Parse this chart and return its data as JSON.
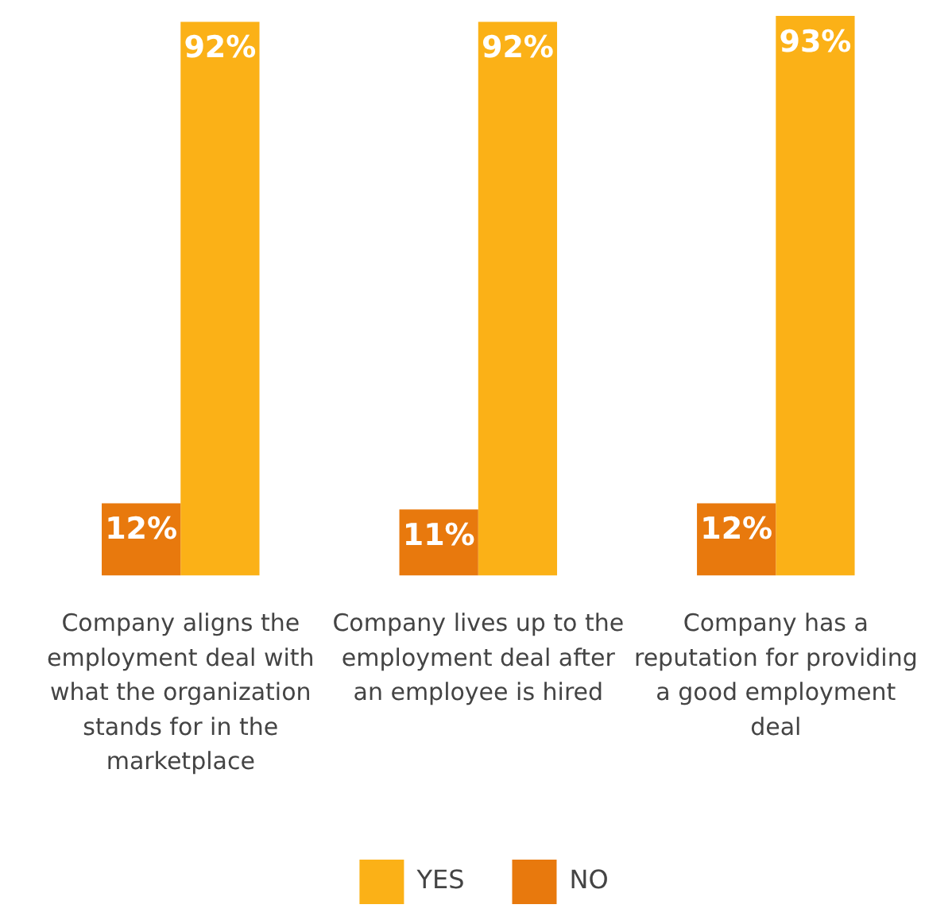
{
  "chart_data": {
    "type": "bar",
    "categories": [
      "Company aligns the employment deal with what the organization stands for in the marketplace",
      "Company lives up to the employment deal after an employee is hired",
      "Company has a reputation for providing a good employment deal"
    ],
    "series": [
      {
        "name": "NO",
        "color": "#e8790d",
        "values": [
          12,
          11,
          12
        ],
        "value_labels": [
          "12%",
          "11%",
          "12%"
        ]
      },
      {
        "name": "YES",
        "color": "#fbb117",
        "values": [
          92,
          92,
          93
        ],
        "value_labels": [
          "92%",
          "92%",
          "93%"
        ]
      }
    ],
    "legend": "bottom",
    "grid": false
  }
}
